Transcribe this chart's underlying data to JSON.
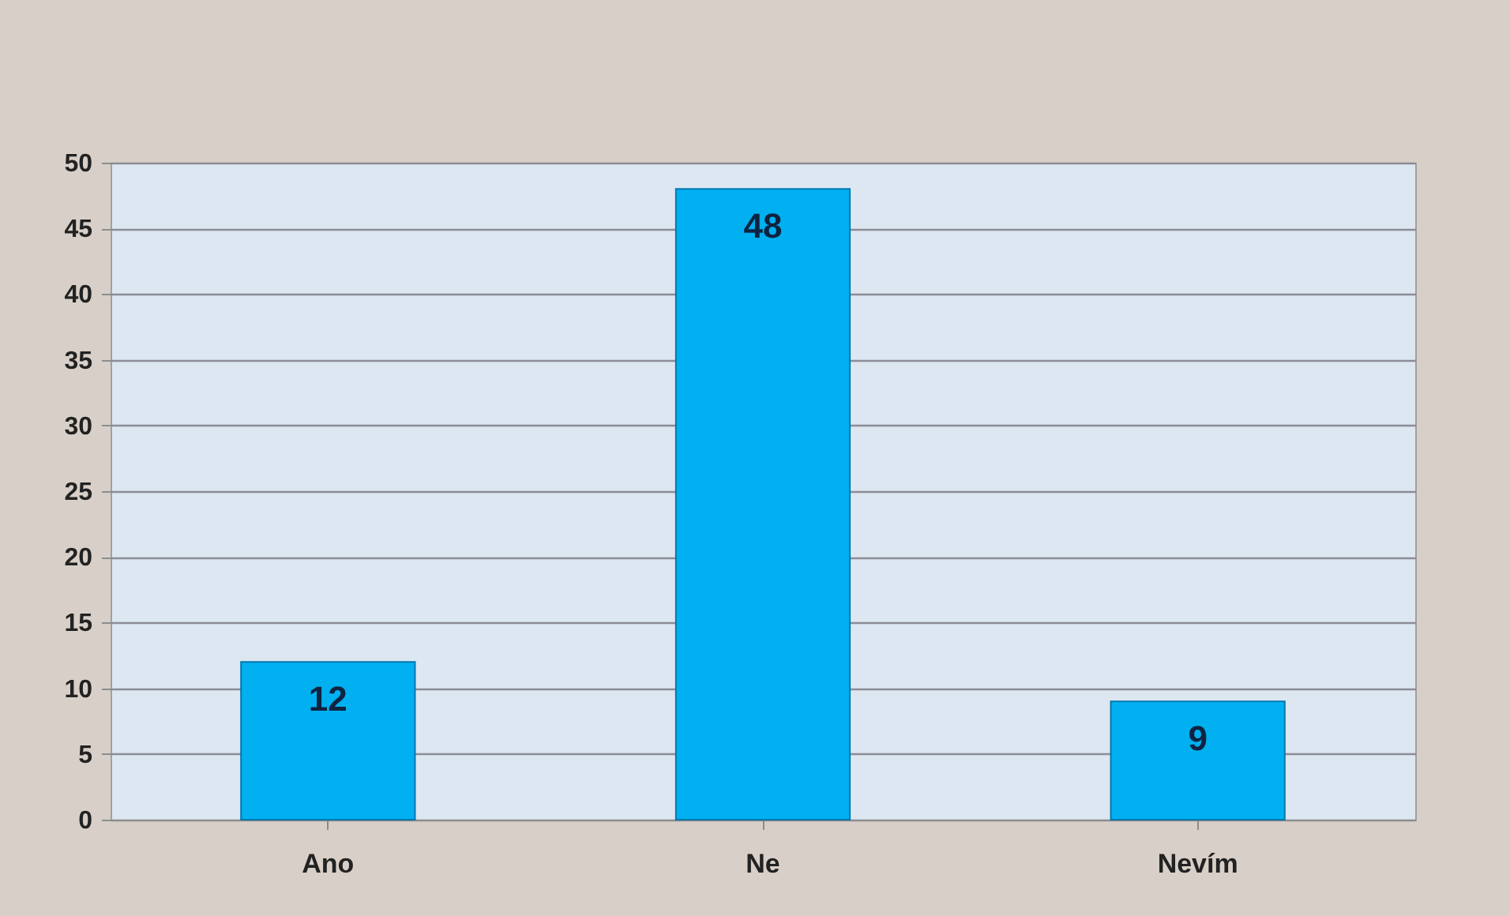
{
  "chart_data": {
    "type": "bar",
    "categories": [
      "Ano",
      "Ne",
      "Nevím"
    ],
    "values": [
      12,
      48,
      9
    ],
    "color": "#00b0f0",
    "ylim": [
      0,
      50
    ],
    "yticks": [
      0,
      5,
      10,
      15,
      20,
      25,
      30,
      35,
      40,
      45,
      50
    ],
    "grid": "y",
    "data_labels": true
  }
}
